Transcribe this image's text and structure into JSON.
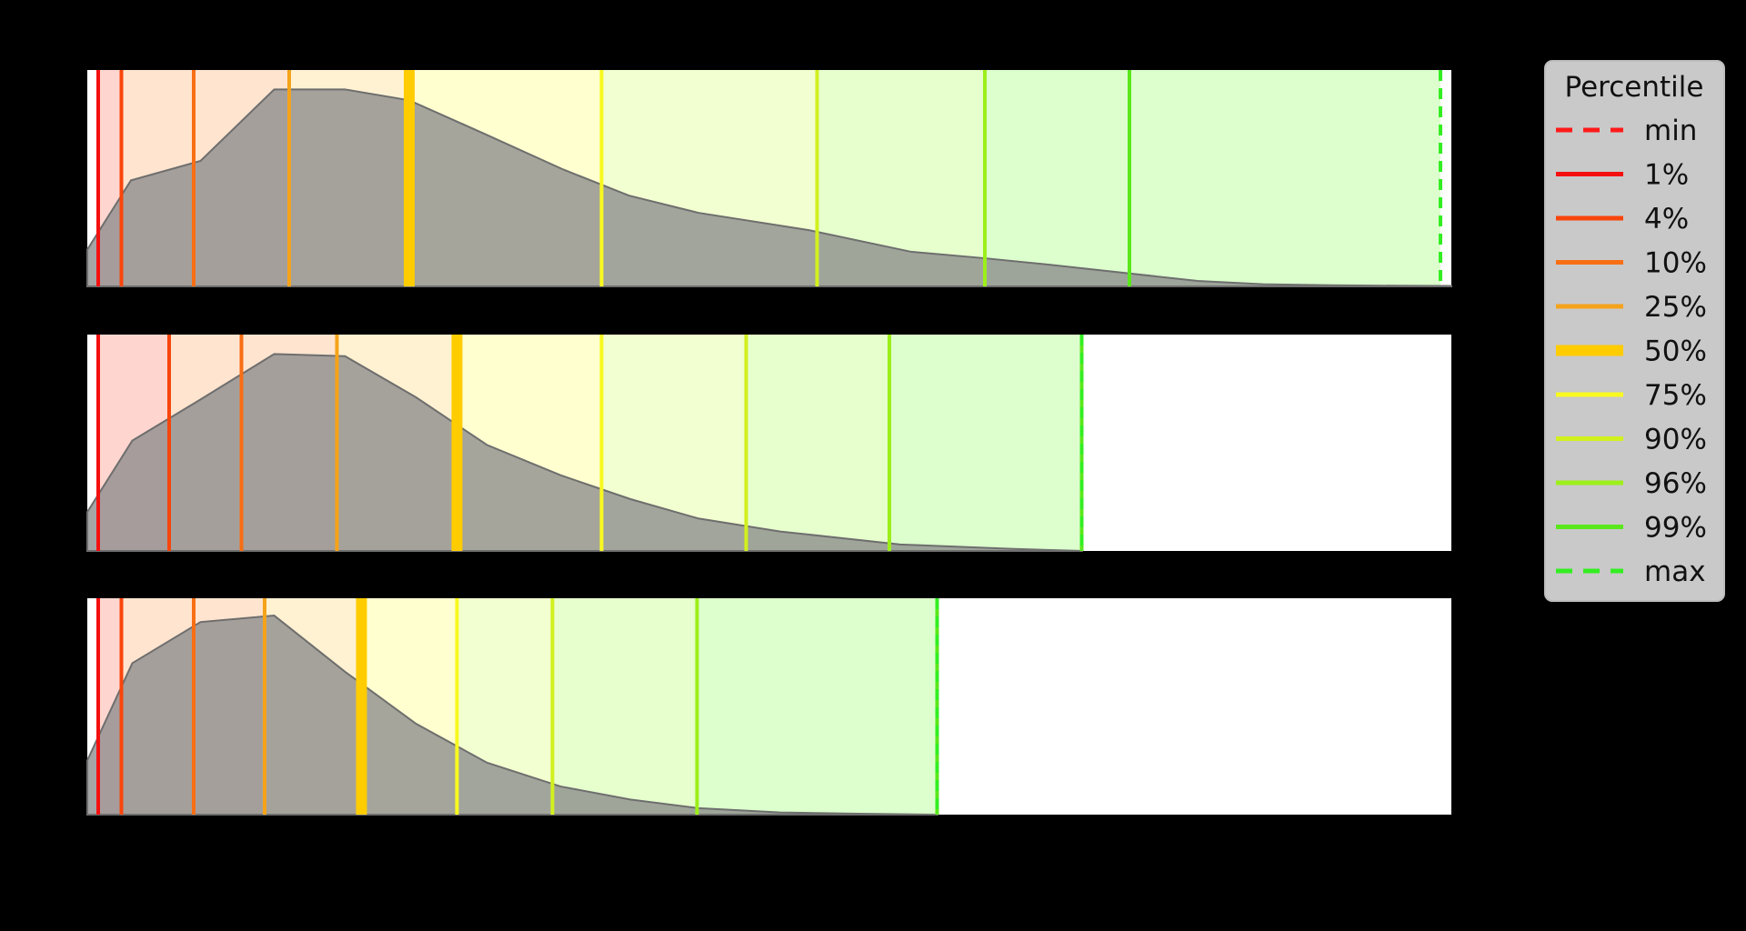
{
  "chart_data": {
    "type": "area",
    "title": "",
    "xlabel": "",
    "ylabel": "",
    "xlim": [
      0,
      100
    ],
    "background": "#000000",
    "density_fill": "#8c8c8c",
    "density_stroke": "#6e6e6e",
    "legend": {
      "title": "Percentile",
      "placement": "right",
      "entries": [
        {
          "key": "min",
          "label": "min",
          "color": "#ff1a1a",
          "style": "dashed"
        },
        {
          "key": "p1",
          "label": "1%",
          "color": "#f51010",
          "style": "solid"
        },
        {
          "key": "p4",
          "label": "4%",
          "color": "#f8450c",
          "style": "solid"
        },
        {
          "key": "p10",
          "label": "10%",
          "color": "#f86e14",
          "style": "solid"
        },
        {
          "key": "p25",
          "label": "25%",
          "color": "#f5a31a",
          "style": "solid"
        },
        {
          "key": "p50",
          "label": "50%",
          "color": "#ffcc00",
          "style": "thick"
        },
        {
          "key": "p75",
          "label": "75%",
          "color": "#f9f91f",
          "style": "solid"
        },
        {
          "key": "p90",
          "label": "90%",
          "color": "#d2f01e",
          "style": "solid"
        },
        {
          "key": "p96",
          "label": "96%",
          "color": "#9cef1a",
          "style": "solid"
        },
        {
          "key": "p99",
          "label": "99%",
          "color": "#5ae81c",
          "style": "solid"
        },
        {
          "key": "max",
          "label": "max",
          "color": "#33ee22",
          "style": "dashed"
        }
      ]
    },
    "band_colors": [
      "#ffd6cf",
      "#ffe4cf",
      "#fff2d2",
      "#ffffd0",
      "#f2ffd0",
      "#e6ffcd",
      "#dcffcd"
    ],
    "panels": [
      {
        "percentiles": {
          "min": 0.8,
          "p1": 0.8,
          "p4": 2.5,
          "p10": 7.8,
          "p25": 14.8,
          "p50": 23.6,
          "p75": 37.7,
          "p90": 53.5,
          "p96": 65.8,
          "p99": 76.4,
          "max": 99.2
        },
        "density": {
          "x": [
            0,
            3.2,
            8.3,
            13.7,
            18.9,
            23.6,
            29.3,
            34.9,
            39.7,
            44.8,
            52.9,
            60.4,
            65.8,
            70.6,
            76.4,
            81.4,
            86.2,
            91.3,
            96.3,
            100
          ],
          "y": [
            0.17,
            0.49,
            0.58,
            0.91,
            0.91,
            0.86,
            0.7,
            0.54,
            0.42,
            0.34,
            0.26,
            0.16,
            0.13,
            0.1,
            0.06,
            0.025,
            0.01,
            0.005,
            0.003,
            0.002
          ]
        }
      },
      {
        "percentiles": {
          "min": 0.8,
          "p1": 0.8,
          "p4": 6.0,
          "p10": 11.3,
          "p25": 18.3,
          "p50": 27.1,
          "p75": 37.7,
          "p90": 48.3,
          "p96": 58.8,
          "p99": 72.9,
          "max": 72.9
        },
        "density": {
          "x": [
            0,
            3.3,
            8.3,
            13.7,
            18.9,
            24.1,
            29.3,
            34.7,
            39.8,
            44.8,
            50.8,
            59.6,
            67.7,
            73.0
          ],
          "y": [
            0.18,
            0.51,
            0.7,
            0.91,
            0.9,
            0.71,
            0.49,
            0.35,
            0.24,
            0.15,
            0.09,
            0.03,
            0.01,
            0.0
          ]
        }
      },
      {
        "percentiles": {
          "min": 0.8,
          "p1": 0.8,
          "p4": 2.5,
          "p10": 7.8,
          "p25": 13.0,
          "p50": 20.1,
          "p75": 27.1,
          "p90": 34.1,
          "p96": 44.7,
          "p99": 62.3,
          "max": 62.3
        },
        "density": {
          "x": [
            0,
            3.3,
            8.3,
            13.7,
            18.9,
            24.1,
            29.3,
            34.7,
            39.8,
            44.8,
            50.8,
            56.6,
            62.4
          ],
          "y": [
            0.25,
            0.7,
            0.89,
            0.92,
            0.66,
            0.42,
            0.24,
            0.13,
            0.07,
            0.03,
            0.01,
            0.004,
            0.0
          ]
        }
      }
    ]
  }
}
